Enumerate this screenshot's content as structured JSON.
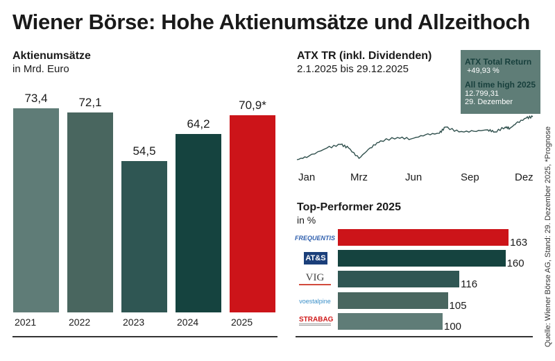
{
  "title": "Wiener Börse: Hohe Aktienumsätze und Allzeithoch",
  "source": "Quelle: Wiener Börse AG, Stand: 29. Dezember 2025, *Prognose",
  "chart_data": [
    {
      "type": "bar",
      "title": "Aktienumsätze",
      "subtitle": "in Mrd. Euro",
      "categories": [
        "2021",
        "2022",
        "2023",
        "2024",
        "2025"
      ],
      "values": [
        73.4,
        72.1,
        54.5,
        64.2,
        70.9
      ],
      "value_labels": [
        "73,4",
        "72,1",
        "54,5",
        "64,2",
        "70,9*"
      ],
      "colors": [
        "#5f7c77",
        "#49665f",
        "#2f5653",
        "#15433f",
        "#cc1419"
      ],
      "ylim": [
        0,
        75
      ]
    },
    {
      "type": "line",
      "title": "ATX TR (inkl. Dividenden)",
      "subtitle": "2.1.2025 bis 29.12.2025",
      "x_tick_labels": [
        "Jan",
        "Mrz",
        "Jun",
        "Sep",
        "Dez"
      ],
      "x": [
        "2025-01-02",
        "2025-01-20",
        "2025-02-17",
        "2025-03-10",
        "2025-03-22",
        "2025-04-07",
        "2025-04-24",
        "2025-05-10",
        "2025-06-05",
        "2025-06-26",
        "2025-07-18",
        "2025-08-08",
        "2025-08-17",
        "2025-09-07",
        "2025-09-30",
        "2025-10-21",
        "2025-11-01",
        "2025-11-17",
        "2025-11-24",
        "2025-12-03",
        "2025-12-19",
        "2025-12-29"
      ],
      "y": [
        8537,
        8880,
        9700,
        10050,
        9700,
        8670,
        9700,
        10400,
        10740,
        10600,
        11010,
        11150,
        11760,
        11290,
        11350,
        11490,
        11290,
        11770,
        11630,
        12110,
        12660,
        12799
      ],
      "color": "#2f4f4c",
      "box": {
        "total_return_label": "ATX Total Return",
        "total_return_value": "+49,93 %",
        "ath_label": "All time high 2025",
        "ath_value": "12.799,31",
        "ath_date": "29. Dezember"
      }
    },
    {
      "type": "bar",
      "orientation": "horizontal",
      "title": "Top-Performer 2025",
      "subtitle": "in %",
      "categories": [
        "FREQUENTIS",
        "AT&S",
        "VIG",
        "voestalpine",
        "STRABAG"
      ],
      "values": [
        163,
        160,
        116,
        105,
        100
      ],
      "colors": [
        "#cc1419",
        "#15433f",
        "#2f5653",
        "#49665f",
        "#5f7c77"
      ]
    }
  ]
}
